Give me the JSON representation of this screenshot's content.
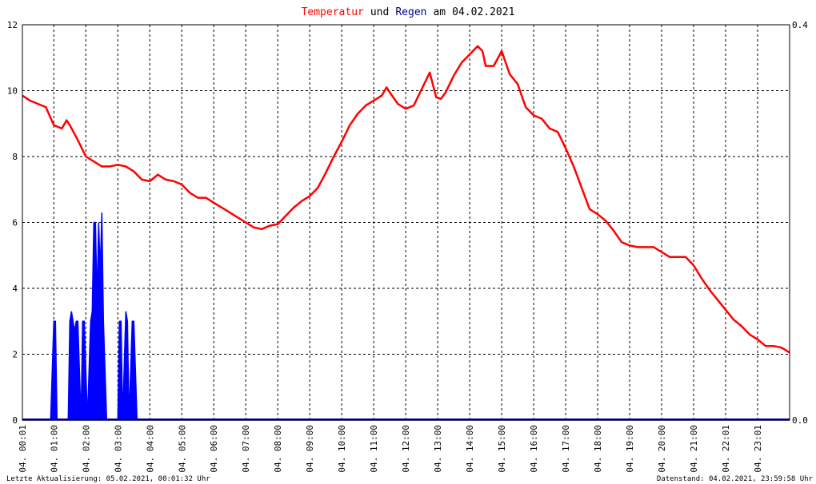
{
  "chart_data": {
    "type": "line",
    "title": {
      "part_temp": "Temperatur",
      "part_und": "und",
      "part_regen": "Regen",
      "part_am": "am",
      "date": "04.02.2021"
    },
    "colors": {
      "temperature": "#ff0000",
      "rain": "#0000ff",
      "title_temp": "#ff0000",
      "title_regen": "#000080",
      "grid": "#000000",
      "baseline": "#0000a0"
    },
    "y_left": {
      "min": 0,
      "max": 12,
      "ticks": [
        "0",
        "2",
        "4",
        "6",
        "8",
        "10",
        "12"
      ]
    },
    "y_right": {
      "min": 0,
      "max": 0.4,
      "ticks": [
        "0.0",
        "0.4"
      ]
    },
    "x_range_hours": [
      0.0167,
      24.0
    ],
    "x_ticks": [
      {
        "h": 0.0167,
        "label": "04. 00:01"
      },
      {
        "h": 1,
        "label": "04. 01:00"
      },
      {
        "h": 2,
        "label": "04. 02:00"
      },
      {
        "h": 3,
        "label": "04. 03:00"
      },
      {
        "h": 4,
        "label": "04. 04:00"
      },
      {
        "h": 5,
        "label": "04. 05:00"
      },
      {
        "h": 6,
        "label": "04. 06:00"
      },
      {
        "h": 7,
        "label": "04. 07:00"
      },
      {
        "h": 8,
        "label": "04. 08:00"
      },
      {
        "h": 9,
        "label": "04. 09:00"
      },
      {
        "h": 10,
        "label": "04. 10:00"
      },
      {
        "h": 11,
        "label": "04. 11:00"
      },
      {
        "h": 12,
        "label": "04. 12:00"
      },
      {
        "h": 13,
        "label": "04. 13:00"
      },
      {
        "h": 14,
        "label": "04. 14:00"
      },
      {
        "h": 15,
        "label": "04. 15:00"
      },
      {
        "h": 16,
        "label": "04. 16:00"
      },
      {
        "h": 17,
        "label": "04. 17:00"
      },
      {
        "h": 18,
        "label": "04. 18:00"
      },
      {
        "h": 19,
        "label": "04. 19:00"
      },
      {
        "h": 20,
        "label": "04. 20:00"
      },
      {
        "h": 21,
        "label": "04. 21:00"
      },
      {
        "h": 22,
        "label": "04. 22:01"
      },
      {
        "h": 23,
        "label": "04. 23:01"
      }
    ],
    "series": [
      {
        "name": "Temperatur",
        "x": [
          0.0167,
          0.25,
          0.5,
          0.75,
          1.0,
          1.25,
          1.4,
          1.5,
          1.75,
          2.0,
          2.25,
          2.5,
          2.75,
          3.0,
          3.25,
          3.5,
          3.75,
          4.0,
          4.25,
          4.5,
          4.75,
          5.0,
          5.25,
          5.5,
          5.75,
          6.0,
          6.25,
          6.5,
          6.75,
          7.0,
          7.25,
          7.5,
          7.75,
          8.0,
          8.25,
          8.5,
          8.75,
          9.0,
          9.25,
          9.5,
          9.75,
          10.0,
          10.25,
          10.5,
          10.75,
          11.0,
          11.25,
          11.4,
          11.5,
          11.75,
          12.0,
          12.25,
          12.5,
          12.75,
          12.95,
          13.1,
          13.25,
          13.5,
          13.75,
          14.0,
          14.25,
          14.4,
          14.5,
          14.75,
          15.0,
          15.25,
          15.5,
          15.75,
          16.0,
          16.25,
          16.5,
          16.75,
          17.0,
          17.25,
          17.5,
          17.75,
          18.0,
          18.25,
          18.5,
          18.75,
          19.0,
          19.25,
          19.5,
          19.75,
          20.0,
          20.25,
          20.5,
          20.75,
          21.0,
          21.25,
          21.5,
          21.75,
          22.0,
          22.25,
          22.5,
          22.75,
          23.0,
          23.25,
          23.5,
          23.75,
          24.0
        ],
        "values": [
          9.85,
          9.7,
          9.6,
          9.5,
          8.95,
          8.85,
          9.1,
          8.95,
          8.5,
          8.0,
          7.85,
          7.7,
          7.7,
          7.75,
          7.7,
          7.55,
          7.3,
          7.25,
          7.45,
          7.3,
          7.25,
          7.15,
          6.9,
          6.75,
          6.75,
          6.6,
          6.45,
          6.3,
          6.15,
          6.0,
          5.85,
          5.8,
          5.9,
          5.95,
          6.2,
          6.45,
          6.65,
          6.8,
          7.05,
          7.5,
          8.0,
          8.45,
          8.95,
          9.3,
          9.55,
          9.7,
          9.85,
          10.1,
          9.95,
          9.6,
          9.45,
          9.55,
          10.05,
          10.55,
          9.8,
          9.75,
          9.95,
          10.45,
          10.85,
          11.1,
          11.35,
          11.2,
          10.75,
          10.75,
          11.2,
          10.5,
          10.2,
          9.5,
          9.25,
          9.15,
          8.85,
          8.75,
          8.25,
          7.7,
          7.05,
          6.4,
          6.25,
          6.05,
          5.75,
          5.4,
          5.3,
          5.25,
          5.25,
          5.25,
          5.1,
          4.95,
          4.95,
          4.95,
          4.7,
          4.3,
          3.95,
          3.65,
          3.35,
          3.05,
          2.85,
          2.6,
          2.45,
          2.25,
          2.25,
          2.2,
          2.05
        ]
      },
      {
        "name": "Regen",
        "x": [
          0.0167,
          0.9,
          0.95,
          1.0,
          1.05,
          1.1,
          1.45,
          1.5,
          1.55,
          1.6,
          1.65,
          1.7,
          1.75,
          1.8,
          1.85,
          1.9,
          1.95,
          2.0,
          2.05,
          2.15,
          2.2,
          2.25,
          2.3,
          2.35,
          2.4,
          2.45,
          2.5,
          2.55,
          2.6,
          2.65,
          2.7,
          2.75,
          3.0,
          3.05,
          3.1,
          3.15,
          3.25,
          3.3,
          3.35,
          3.45,
          3.5,
          3.55,
          3.6,
          4.0,
          24.0
        ],
        "values": [
          0,
          0,
          0.05,
          0.1,
          0.1,
          0,
          0,
          0.1,
          0.11,
          0.1,
          0.09,
          0.1,
          0.1,
          0.05,
          0,
          0.1,
          0.1,
          0.05,
          0,
          0.1,
          0.11,
          0.2,
          0.2,
          0.12,
          0.2,
          0.15,
          0.21,
          0.1,
          0.05,
          0,
          0,
          0,
          0,
          0.1,
          0.1,
          0,
          0.11,
          0.1,
          0,
          0.1,
          0.1,
          0.05,
          0,
          0,
          0
        ]
      }
    ],
    "footer": {
      "left": "Letzte Aktualisierung: 05.02.2021, 00:01:32 Uhr",
      "right": "Datenstand: 04.02.2021, 23:59:58 Uhr"
    }
  }
}
